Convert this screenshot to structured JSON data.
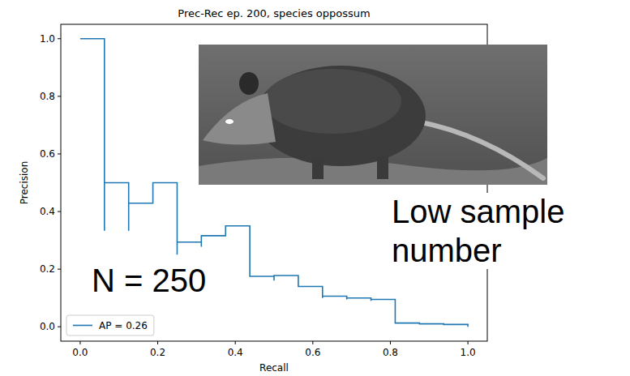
{
  "chart_data": {
    "type": "line",
    "title": "Prec-Rec ep. 200, species oppossum",
    "x_label": "Recall",
    "y_label": "Precision",
    "xlim": [
      -0.05,
      1.05
    ],
    "ylim": [
      -0.05,
      1.05
    ],
    "xticks": [
      {
        "value": 0,
        "label": "0.0"
      },
      0.2,
      0.4,
      0.6,
      0.8,
      {
        "value": 1,
        "label": "1.0"
      }
    ],
    "yticks": [
      {
        "value": 0,
        "label": "0.0"
      },
      0.2,
      0.4,
      0.6,
      0.8,
      {
        "value": 1,
        "label": "1.0"
      }
    ],
    "grid": false,
    "legend": "lower left",
    "series": [
      {
        "name": "AP = 0.26",
        "color": "#1f77b4",
        "line_style": "solid",
        "x": [
          0,
          0.0625,
          0.0625,
          0.0625,
          0.125,
          0.125,
          0.125,
          0.1875,
          0.1875,
          0.25,
          0.25,
          0.25,
          0.3125,
          0.3125,
          0.3125,
          0.375,
          0.375,
          0.4375,
          0.4375,
          0.5,
          0.5,
          0.5,
          0.5625,
          0.5625,
          0.625,
          0.625,
          0.625,
          0.6875,
          0.6875,
          0.6875,
          0.75,
          0.75,
          0.75,
          0.8125,
          0.8125,
          0.875,
          0.875,
          0.9375,
          0.9375,
          1.0,
          1.0
        ],
        "values": [
          1.0,
          1.0,
          0.333,
          0.5,
          0.5,
          0.333,
          0.429,
          0.429,
          0.5,
          0.5,
          0.25,
          0.294,
          0.294,
          0.278,
          0.316,
          0.316,
          0.35,
          0.35,
          0.175,
          0.175,
          0.16,
          0.178,
          0.178,
          0.14,
          0.14,
          0.1,
          0.106,
          0.106,
          0.095,
          0.1,
          0.1,
          0.09,
          0.095,
          0.095,
          0.013,
          0.013,
          0.01,
          0.01,
          0.008,
          0.008,
          0.0
        ]
      }
    ],
    "annotations": [
      "N = 250",
      "Low sample number"
    ]
  }
}
